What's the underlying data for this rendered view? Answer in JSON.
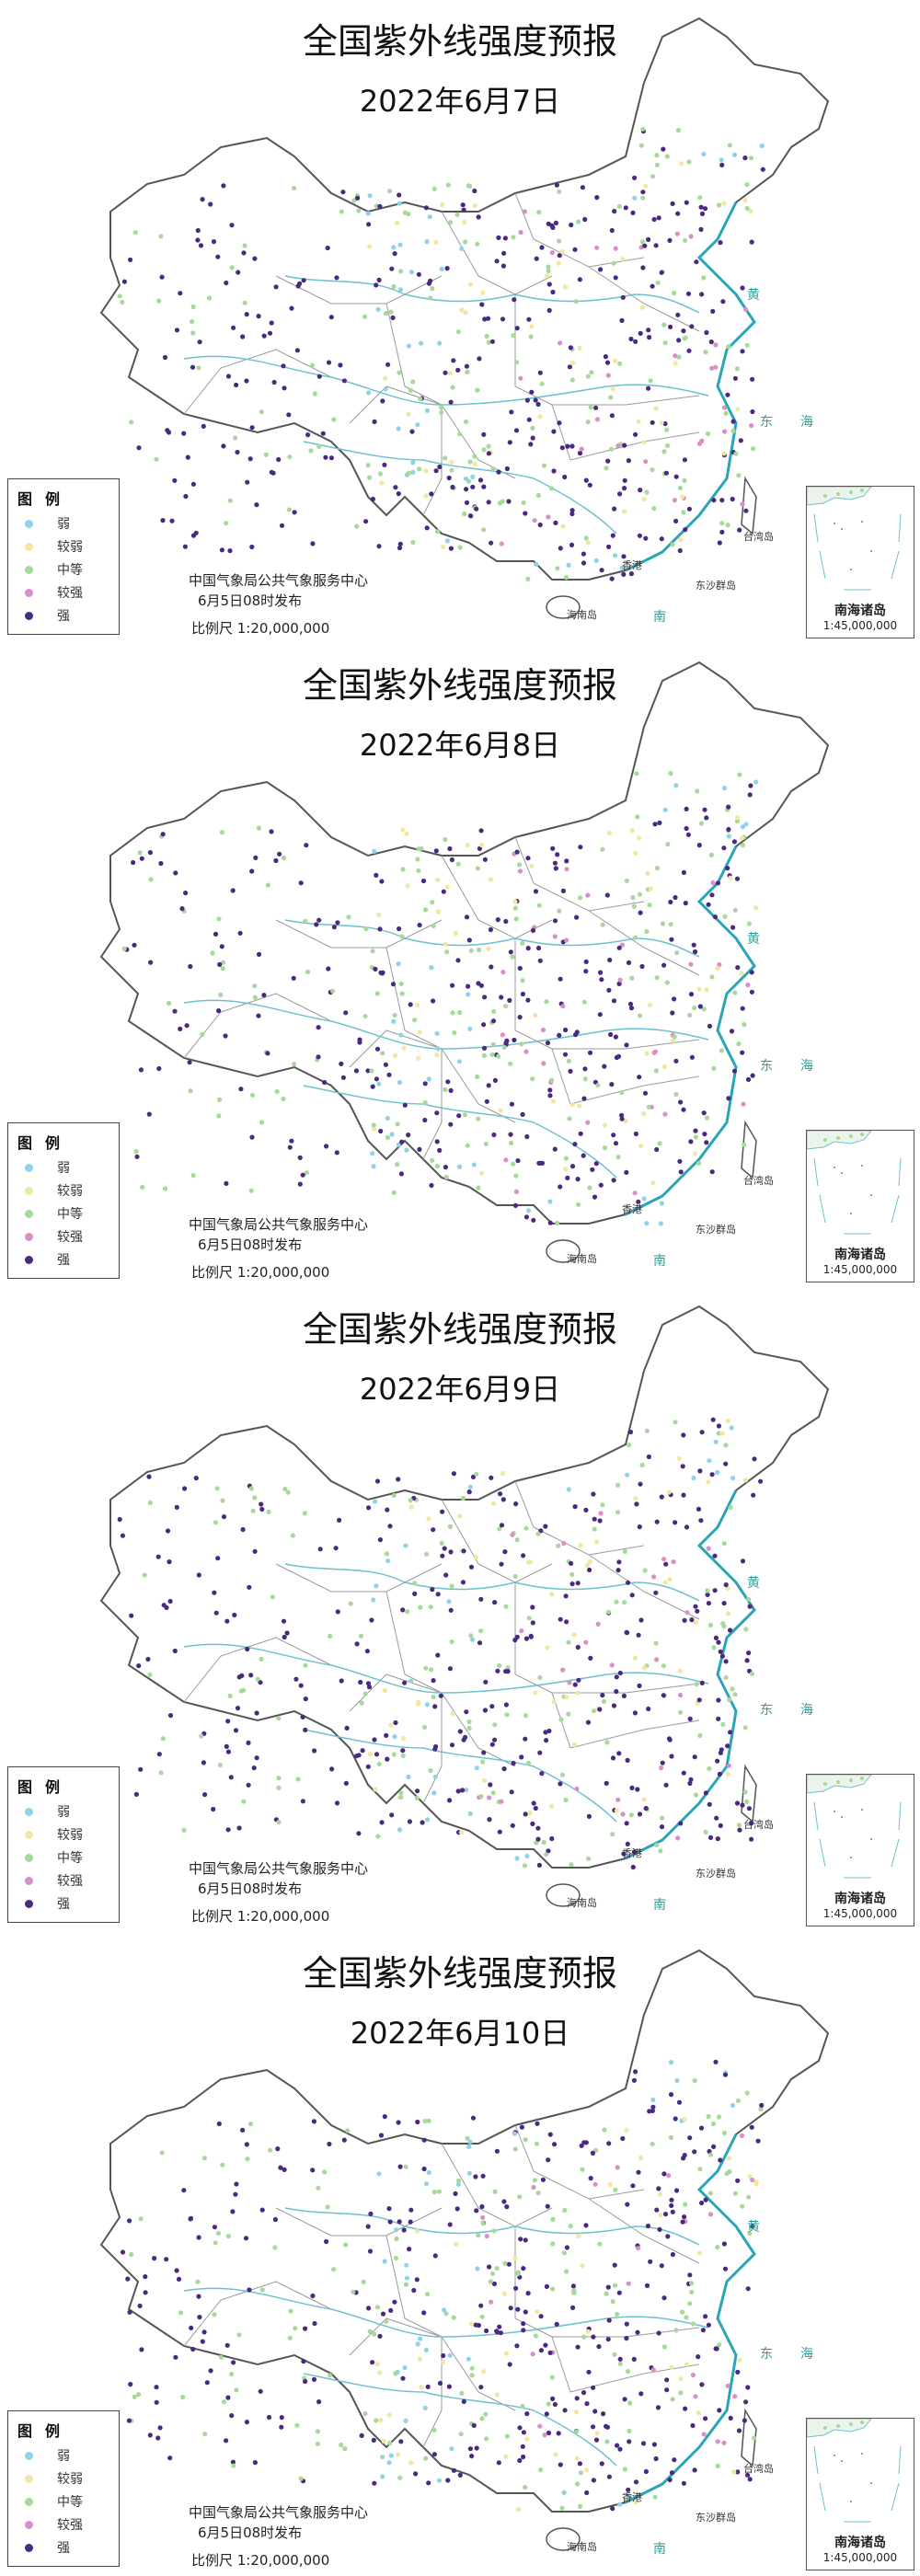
{
  "product_title": "全国紫外线强度预报",
  "panels": [
    {
      "date": "2022年6月7日"
    },
    {
      "date": "2022年6月8日"
    },
    {
      "date": "2022年6月9日"
    },
    {
      "date": "2022年6月10日"
    }
  ],
  "legend": {
    "title": "图例",
    "items": [
      {
        "label": "弱",
        "color": "#8fd3e8"
      },
      {
        "label": "较弱",
        "color": "#f2e6a0"
      },
      {
        "label": "中等",
        "color": "#a6d99a"
      },
      {
        "label": "较强",
        "color": "#d98fc8"
      },
      {
        "label": "强",
        "color": "#4a2a80"
      }
    ]
  },
  "issuer": "中国气象局公共气象服务中心",
  "issue_time": "6月5日08时发布",
  "scale": "比例尺 1:20,000,000",
  "inset": {
    "title": "南海诸岛",
    "scale": "1:45,000,000"
  },
  "place_labels": {
    "hong_kong": "香港",
    "taiwan": "台湾岛",
    "hainan": "海南岛",
    "dongsha": "东沙群岛"
  },
  "sea_labels": {
    "east": "东",
    "east2": "海",
    "yellow": "黄",
    "south": "南"
  },
  "colors": {
    "border": "#555555",
    "coast": "#2aa5b8",
    "river": "#6fc0cf"
  }
}
